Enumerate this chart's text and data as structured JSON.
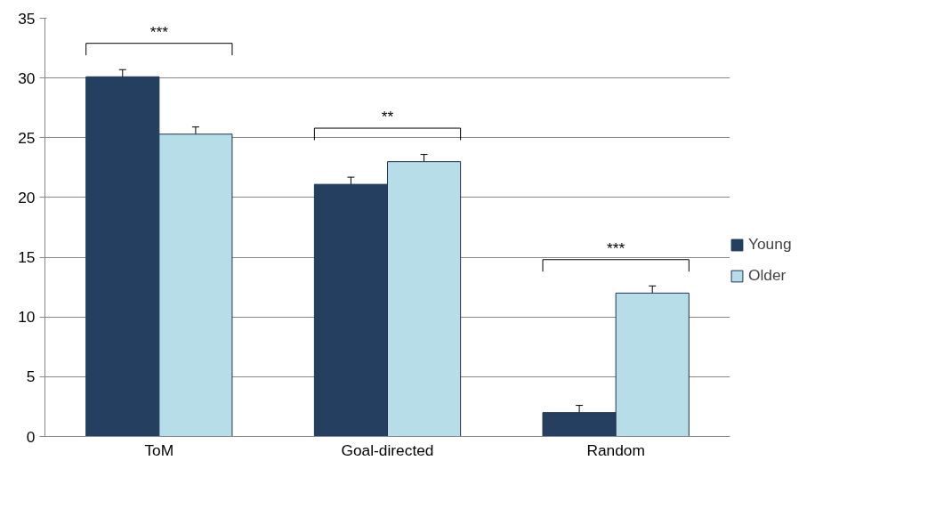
{
  "chart_data": {
    "type": "bar",
    "categories": [
      "ToM",
      "Goal-directed",
      "Random"
    ],
    "series": [
      {
        "name": "Young",
        "color": "#243f60",
        "values": [
          30.1,
          21.1,
          2.0
        ],
        "errors": [
          0.6,
          0.6,
          0.6
        ]
      },
      {
        "name": "Older",
        "color": "#b7dde8",
        "values": [
          25.3,
          23.0,
          12.0
        ],
        "errors": [
          0.6,
          0.6,
          0.6
        ]
      }
    ],
    "ylim": [
      0,
      35
    ],
    "yticks": [
      0,
      5,
      10,
      15,
      20,
      25,
      30,
      35
    ],
    "grid": "y",
    "legend": "right",
    "annotations": [
      "***",
      "**",
      "***"
    ]
  }
}
